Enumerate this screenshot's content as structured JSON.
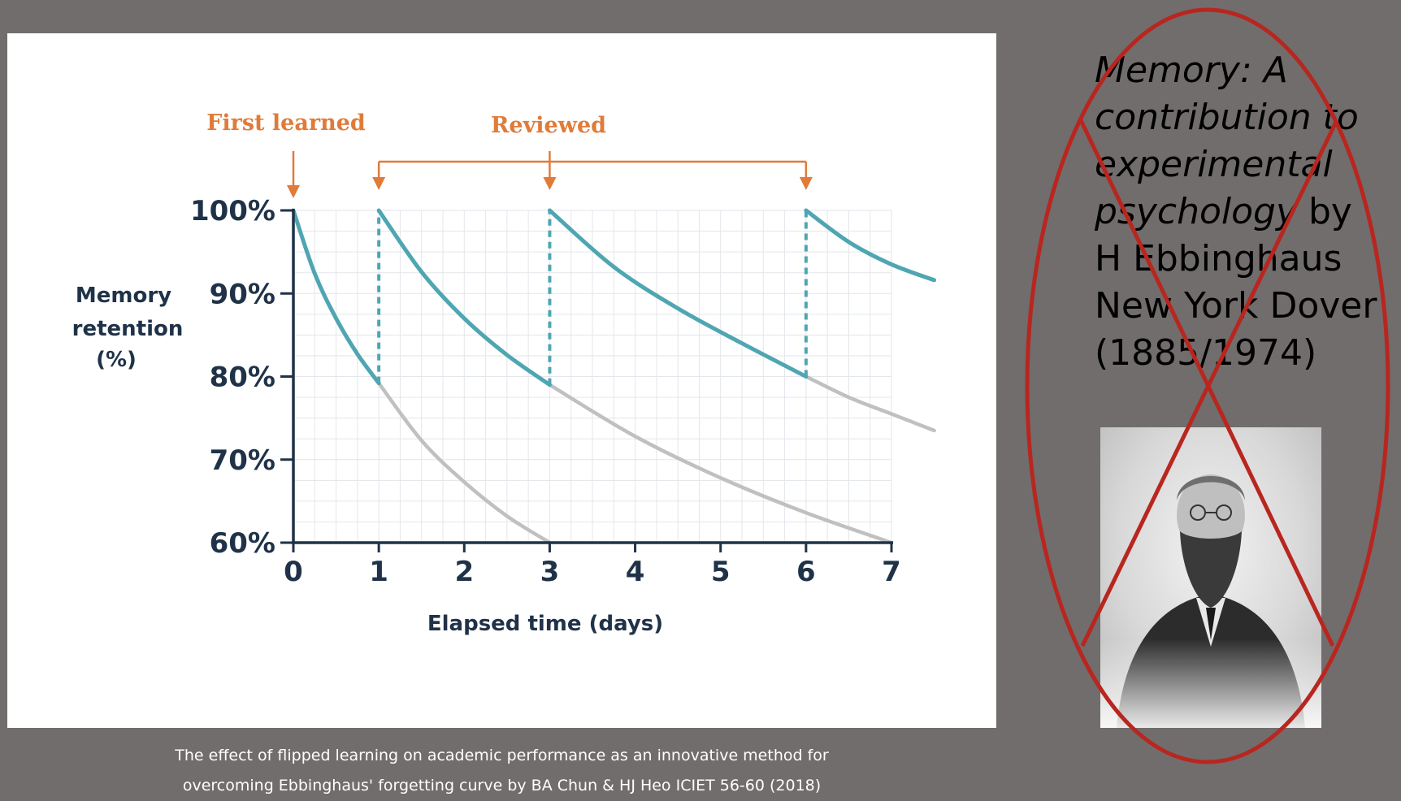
{
  "chart_data": {
    "type": "line",
    "ylabel_lines": [
      "Memory",
      "retention",
      "(%)"
    ],
    "xlabel": "Elapsed time (days)",
    "xlim": [
      0,
      7
    ],
    "ylim": [
      60,
      100
    ],
    "x_ticks": [
      0,
      1,
      2,
      3,
      4,
      5,
      6,
      7
    ],
    "x_tick_labels": [
      "0",
      "1",
      "2",
      "3",
      "4",
      "5",
      "6",
      "7"
    ],
    "y_ticks": [
      60,
      70,
      80,
      90,
      100
    ],
    "y_tick_labels": [
      "60%",
      "70%",
      "80%",
      "90%",
      "100%"
    ],
    "grid": true,
    "annotations": {
      "first_learned": {
        "label": "First learned",
        "day": 0
      },
      "reviewed": {
        "label": "Reviewed",
        "days": [
          1,
          3,
          6
        ]
      }
    },
    "review_segments": [
      {
        "x": [
          0,
          0.25,
          0.5,
          0.75,
          1
        ],
        "y": [
          100,
          92.4,
          87,
          82.7,
          79.2
        ]
      },
      {
        "x": [
          1,
          1.5,
          2,
          2.5,
          3
        ],
        "y": [
          100,
          92.6,
          87,
          82.6,
          79
        ]
      },
      {
        "x": [
          3,
          3.75,
          4.5,
          5.25,
          6
        ],
        "y": [
          100,
          93.2,
          88.2,
          84,
          80
        ]
      },
      {
        "x": [
          6,
          6.5,
          7,
          7.5
        ],
        "y": [
          100,
          96.2,
          93.5,
          91.6
        ]
      }
    ],
    "forgetting_segments": [
      {
        "x": [
          1,
          1.5,
          2,
          2.5,
          3
        ],
        "y": [
          79.2,
          72.3,
          67.3,
          63.2,
          60
        ]
      },
      {
        "x": [
          3,
          4,
          5,
          6,
          7
        ],
        "y": [
          79,
          72.8,
          67.8,
          63.6,
          60
        ]
      },
      {
        "x": [
          6,
          6.5,
          7,
          7.5
        ],
        "y": [
          80,
          77.5,
          75.5,
          73.5
        ]
      }
    ],
    "colors": {
      "review_curve": "#4fa6b2",
      "forgetting_curve": "#c0c0c0",
      "axis": "#1f3248",
      "annotation": "#e07b39"
    }
  },
  "caption": {
    "line1": "The effect of flipped learning on academic performance as an innovative method for",
    "line2": "overcoming Ebbinghaus' forgetting curve by BA Chun & HJ Heo ICIET 56-60 (2018)"
  },
  "reference": {
    "title_lines": [
      "Memory: A",
      "contribution to",
      "experimental",
      "psychology"
    ],
    "rest_lines": [
      " by",
      "H Ebbinghaus",
      "New York Dover",
      "(1885/1974)"
    ]
  },
  "crossout_color": "#b8261f"
}
